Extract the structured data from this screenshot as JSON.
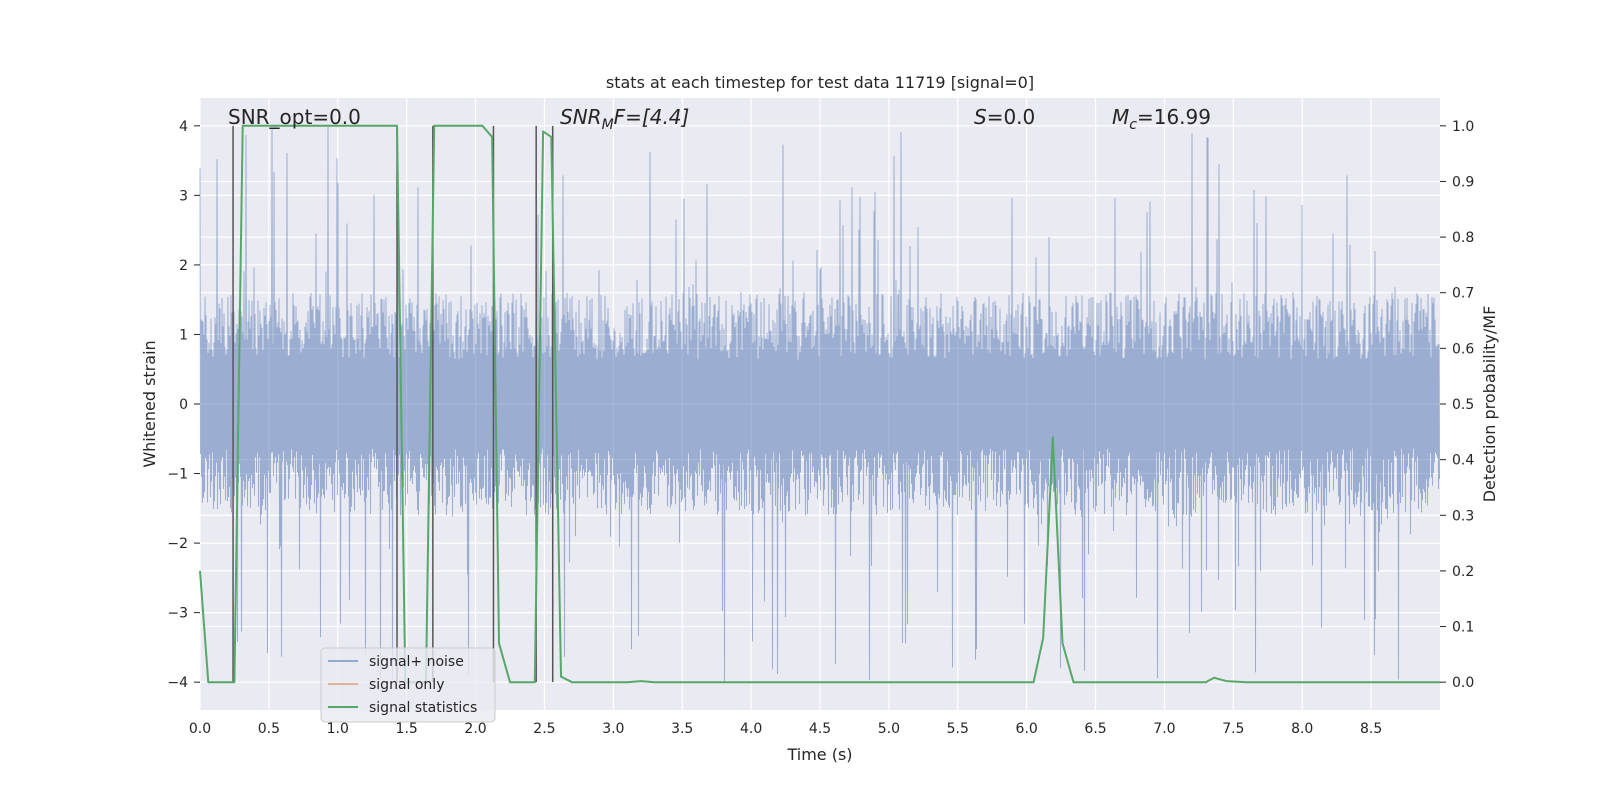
{
  "chart_data": {
    "type": "line",
    "title": "stats at each timestep for test data 11719 [signal=0]",
    "xlabel": "Time (s)",
    "ylabel": "Whitened strain",
    "ylabel_right": "Detection probability/MF",
    "xlim": [
      0.0,
      9.0
    ],
    "ylim": [
      -4.4,
      4.4
    ],
    "ylim_right": [
      -0.05,
      1.05
    ],
    "x_ticks": [
      "0.0",
      "0.5",
      "1.0",
      "1.5",
      "2.0",
      "2.5",
      "3.0",
      "3.5",
      "4.0",
      "4.5",
      "5.0",
      "5.5",
      "6.0",
      "6.5",
      "7.0",
      "7.5",
      "8.0",
      "8.5"
    ],
    "y_ticks": [
      "−4",
      "−3",
      "−2",
      "−1",
      "0",
      "1",
      "2",
      "3",
      "4"
    ],
    "y_ticks_right": [
      "0.0",
      "0.1",
      "0.2",
      "0.3",
      "0.4",
      "0.5",
      "0.6",
      "0.7",
      "0.8",
      "0.9",
      "1.0"
    ],
    "annotations": {
      "snr_opt": "SNR_opt=0.0",
      "snr_mf_main": "SNR",
      "snr_mf_sub": "M",
      "snr_mf_rest": "F=[4.4]",
      "s_var": "S",
      "s_rest": "=0.0",
      "mc_var": "M",
      "mc_sub": "c",
      "mc_rest": "=16.99"
    },
    "legend": {
      "position": "lower-left",
      "entries": [
        "signal+ noise",
        "signal only",
        "signal statistics"
      ]
    },
    "colors": {
      "noise": "#4c72b0",
      "signal_only": "#dd8452",
      "statistics": "#55a868",
      "vlines": "#555555",
      "background": "#eaeaf2"
    },
    "series": [
      {
        "name": "signal statistics",
        "axis": "right",
        "x": [
          0.0,
          0.06,
          0.25,
          0.31,
          1.43,
          1.49,
          1.64,
          1.7,
          2.05,
          2.12,
          2.17,
          2.25,
          2.43,
          2.49,
          2.55,
          2.62,
          2.7,
          3.1,
          3.2,
          3.3,
          6.05,
          6.12,
          6.19,
          6.26,
          6.34,
          7.3,
          7.36,
          7.45,
          7.6,
          9.0
        ],
        "y": [
          0.2,
          0.0,
          0.0,
          1.0,
          1.0,
          0.0,
          0.0,
          1.0,
          1.0,
          0.98,
          0.07,
          0.0,
          0.0,
          0.99,
          0.98,
          0.01,
          0.0,
          0.0,
          0.002,
          0.0,
          0.0,
          0.08,
          0.44,
          0.07,
          0.0,
          0.0,
          0.008,
          0.002,
          0.0,
          0.0
        ]
      },
      {
        "name": "signal+ noise",
        "axis": "left",
        "noise_band": 1.6,
        "noise_peak": 4.0
      },
      {
        "name": "signal only",
        "axis": "left",
        "values": []
      }
    ],
    "vlines_x": [
      0.24,
      1.43,
      1.69,
      2.13,
      2.44,
      2.56
    ]
  }
}
